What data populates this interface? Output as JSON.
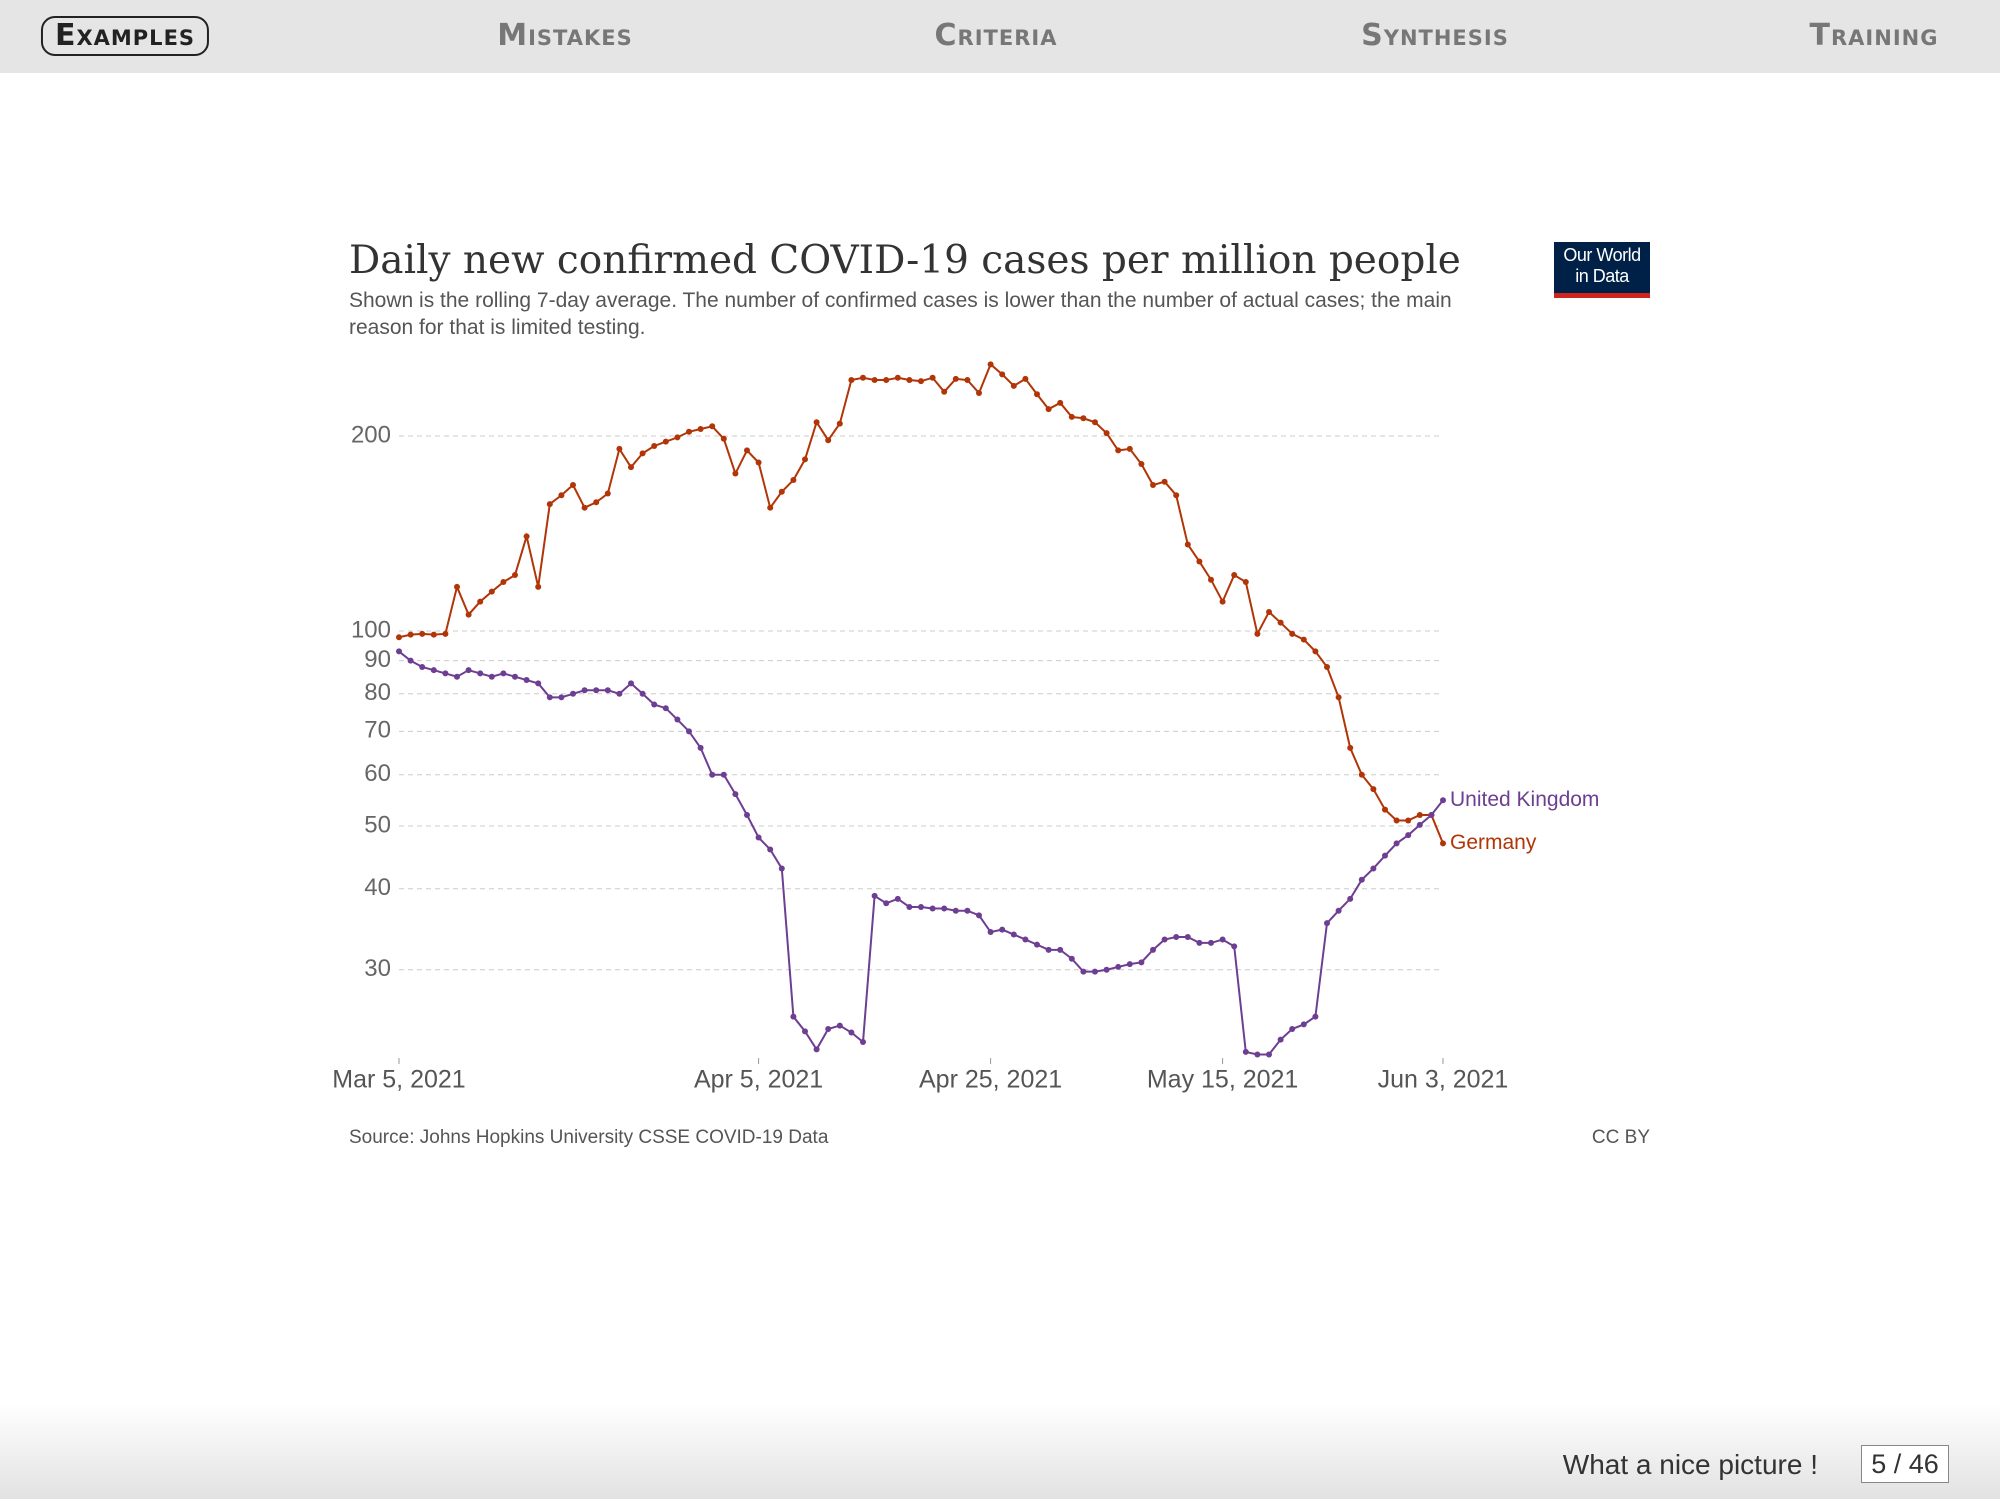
{
  "nav": [
    "Examples",
    "Mistakes",
    "Criteria",
    "Synthesis",
    "Training"
  ],
  "footer": {
    "caption": "What a nice picture !",
    "page": "5 / 46"
  },
  "chart_data": {
    "type": "line",
    "title": "Daily new confirmed COVID-19 cases per million people",
    "subtitle": "Shown is the rolling 7-day average. The number of confirmed cases is lower than the number of actual cases; the main reason for that is limited testing.",
    "logo": [
      "Our World",
      "in Data"
    ],
    "source": "Source: Johns Hopkins University CSSE COVID-19 Data",
    "license": "CC BY",
    "log_scale": true,
    "grid": true,
    "x": [
      "2021-03-05",
      "2021-03-06",
      "2021-03-07",
      "2021-03-08",
      "2021-03-09",
      "2021-03-10",
      "2021-03-11",
      "2021-03-12",
      "2021-03-13",
      "2021-03-14",
      "2021-03-15",
      "2021-03-16",
      "2021-03-17",
      "2021-03-18",
      "2021-03-19",
      "2021-03-20",
      "2021-03-21",
      "2021-03-22",
      "2021-03-23",
      "2021-03-24",
      "2021-03-25",
      "2021-03-26",
      "2021-03-27",
      "2021-03-28",
      "2021-03-29",
      "2021-03-30",
      "2021-03-31",
      "2021-04-01",
      "2021-04-02",
      "2021-04-03",
      "2021-04-04",
      "2021-04-05",
      "2021-04-06",
      "2021-04-07",
      "2021-04-08",
      "2021-04-09",
      "2021-04-10",
      "2021-04-11",
      "2021-04-12",
      "2021-04-13",
      "2021-04-14",
      "2021-04-15",
      "2021-04-16",
      "2021-04-17",
      "2021-04-18",
      "2021-04-19",
      "2021-04-20",
      "2021-04-21",
      "2021-04-22",
      "2021-04-23",
      "2021-04-24",
      "2021-04-25",
      "2021-04-26",
      "2021-04-27",
      "2021-04-28",
      "2021-04-29",
      "2021-04-30",
      "2021-05-01",
      "2021-05-02",
      "2021-05-03",
      "2021-05-04",
      "2021-05-05",
      "2021-05-06",
      "2021-05-07",
      "2021-05-08",
      "2021-05-09",
      "2021-05-10",
      "2021-05-11",
      "2021-05-12",
      "2021-05-13",
      "2021-05-14",
      "2021-05-15",
      "2021-05-16",
      "2021-05-17",
      "2021-05-18",
      "2021-05-19",
      "2021-05-20",
      "2021-05-21",
      "2021-05-22",
      "2021-05-23",
      "2021-05-24",
      "2021-05-25",
      "2021-05-26",
      "2021-05-27",
      "2021-05-28",
      "2021-05-29",
      "2021-05-30",
      "2021-05-31",
      "2021-06-01",
      "2021-06-02",
      "2021-06-03"
    ],
    "xlim": [
      "2021-03-05",
      "2021-06-03"
    ],
    "xticks": [
      {
        "value": "2021-03-05",
        "label": "Mar 5, 2021"
      },
      {
        "value": "2021-04-05",
        "label": "Apr 5, 2021"
      },
      {
        "value": "2021-04-25",
        "label": "Apr 25, 2021"
      },
      {
        "value": "2021-05-15",
        "label": "May 15, 2021"
      },
      {
        "value": "2021-06-03",
        "label": "Jun 3, 2021"
      }
    ],
    "ylim": [
      22,
      262
    ],
    "yticks": [
      30,
      40,
      50,
      60,
      70,
      80,
      90,
      100,
      200
    ],
    "series": [
      {
        "name": "Germany",
        "color": "#b13507",
        "values": [
          97.8,
          98.7,
          99,
          98.7,
          99,
          117,
          106,
          111,
          115,
          119,
          122,
          140,
          117,
          157,
          162,
          168,
          155,
          158,
          163,
          191,
          179,
          188,
          193,
          196,
          199,
          203,
          205,
          207,
          198,
          175,
          190,
          182,
          155,
          164,
          171,
          184,
          210,
          197,
          209,
          244,
          246,
          244,
          244,
          246,
          244,
          243,
          246,
          234,
          245,
          244,
          233,
          258,
          249,
          239,
          245,
          232,
          220,
          225,
          214,
          213,
          210,
          202,
          190,
          191,
          181,
          168,
          170,
          162,
          136,
          128,
          120,
          111,
          122,
          119,
          99,
          107,
          103,
          99,
          97,
          93,
          88,
          79,
          66,
          60,
          57,
          53,
          51,
          51,
          52,
          52,
          47
        ]
      },
      {
        "name": "United Kingdom",
        "color": "#6d3e91",
        "values": [
          93,
          90,
          88,
          87,
          86,
          85,
          87,
          86,
          85,
          86,
          85,
          84,
          83,
          79,
          79,
          80,
          81,
          81,
          81,
          80,
          83,
          80,
          77,
          76,
          73,
          70,
          66,
          60,
          60,
          56,
          52,
          48,
          46,
          43,
          25.4,
          24.1,
          22.6,
          24.3,
          24.6,
          24,
          23.2,
          39,
          38,
          38.6,
          37.5,
          37.5,
          37.3,
          37.3,
          37,
          37,
          36.4,
          34.3,
          34.6,
          34,
          33.4,
          32.8,
          32.2,
          32.2,
          31.2,
          29.8,
          29.8,
          30,
          30.3,
          30.6,
          30.8,
          32.2,
          33.4,
          33.7,
          33.7,
          33,
          33,
          33.4,
          32.6,
          22.4,
          22.2,
          22.2,
          23.4,
          24.3,
          24.7,
          25.4,
          35.4,
          37,
          38.6,
          41.3,
          43,
          45,
          47,
          48.4,
          50.2,
          52,
          54.8
        ]
      }
    ]
  }
}
